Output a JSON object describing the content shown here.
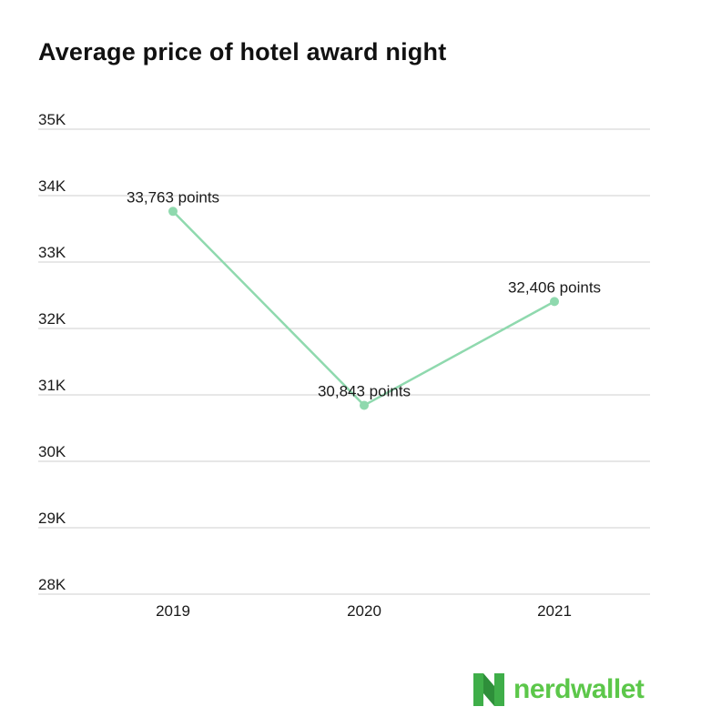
{
  "chart_data": {
    "type": "line",
    "title": "Average price of hotel award night",
    "categories": [
      "2019",
      "2020",
      "2021"
    ],
    "values": [
      33763,
      30843,
      32406
    ],
    "data_labels": [
      "33,763 points",
      "30,843 points",
      "32,406 points"
    ],
    "ylim": [
      28000,
      35000
    ],
    "yticks": [
      28000,
      29000,
      30000,
      31000,
      32000,
      33000,
      34000,
      35000
    ],
    "ytick_labels": [
      "28K",
      "29K",
      "30K",
      "31K",
      "32K",
      "33K",
      "34K",
      "35K"
    ],
    "grid": true,
    "legend": "none",
    "line_color": "#8fd9ae"
  },
  "brand": {
    "name": "nerdwallet",
    "color": "#5cc74a",
    "icon": "nerdwallet-n-icon"
  }
}
